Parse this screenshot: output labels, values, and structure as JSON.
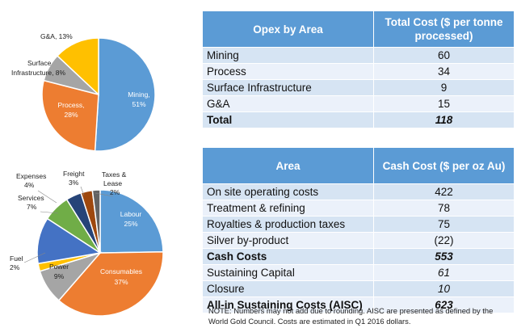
{
  "chart_data": [
    {
      "type": "pie",
      "slices": [
        {
          "label": "Mining,",
          "pct": "51%",
          "value": 51,
          "color": "#5b9bd5"
        },
        {
          "label": "Process,",
          "pct": "28%",
          "value": 28,
          "color": "#ed7d31"
        },
        {
          "label": "Surface Infrastructure, 8%",
          "value": 8,
          "color": "#a5a5a5"
        },
        {
          "label": "G&A, 13%",
          "value": 13,
          "color": "#ffc000"
        }
      ]
    },
    {
      "type": "pie",
      "slices": [
        {
          "label": "Labour",
          "pct": "25%",
          "value": 25,
          "color": "#5b9bd5"
        },
        {
          "label": "Consumables",
          "pct": "37%",
          "value": 37,
          "color": "#ed7d31"
        },
        {
          "label": "Power",
          "pct": "9%",
          "value": 9,
          "color": "#a5a5a5"
        },
        {
          "label": "Fuel",
          "pct": "2%",
          "value": 2,
          "color": "#ffc000"
        },
        {
          "label": "",
          "value": 12,
          "color": "#4472c4"
        },
        {
          "label": "Services",
          "pct": "7%",
          "value": 7,
          "color": "#70ad47"
        },
        {
          "label": "Expenses",
          "pct": "4%",
          "value": 4,
          "color": "#264478"
        },
        {
          "label": "Freight",
          "pct": "3%",
          "value": 3,
          "color": "#9e480e"
        },
        {
          "label": "Taxes & Lease",
          "pct": "2%",
          "value": 2,
          "color": "#636363"
        }
      ]
    }
  ],
  "table1": {
    "headers": [
      "Opex by Area",
      "Total Cost ($ per tonne processed)"
    ],
    "rows": [
      {
        "area": "Mining",
        "value": "60"
      },
      {
        "area": "Process",
        "value": "34"
      },
      {
        "area": "Surface Infrastructure",
        "value": "9"
      },
      {
        "area": "G&A",
        "value": "15"
      }
    ],
    "total": {
      "area": "Total",
      "value": "118"
    }
  },
  "table2": {
    "headers": [
      "Area",
      "Cash Cost ($ per oz Au)"
    ],
    "rows": [
      {
        "area": "On site operating costs",
        "value": "422"
      },
      {
        "area": "Treatment & refining",
        "value": "78"
      },
      {
        "area": "Royalties & production taxes",
        "value": "75"
      },
      {
        "area": "Silver by-product",
        "value": "(22)"
      },
      {
        "area": "Cash Costs",
        "value": "553"
      },
      {
        "area": "Sustaining Capital",
        "value": "61"
      },
      {
        "area": "Closure",
        "value": "10"
      },
      {
        "area": "All-in Sustaining Costs (AISC)",
        "value": "623"
      }
    ]
  },
  "note": "NOTE:  Numbers may not add due to rounding.  AISC are presented as defined by the World Gold Council. Costs are estimated in Q1 2016 dollars."
}
